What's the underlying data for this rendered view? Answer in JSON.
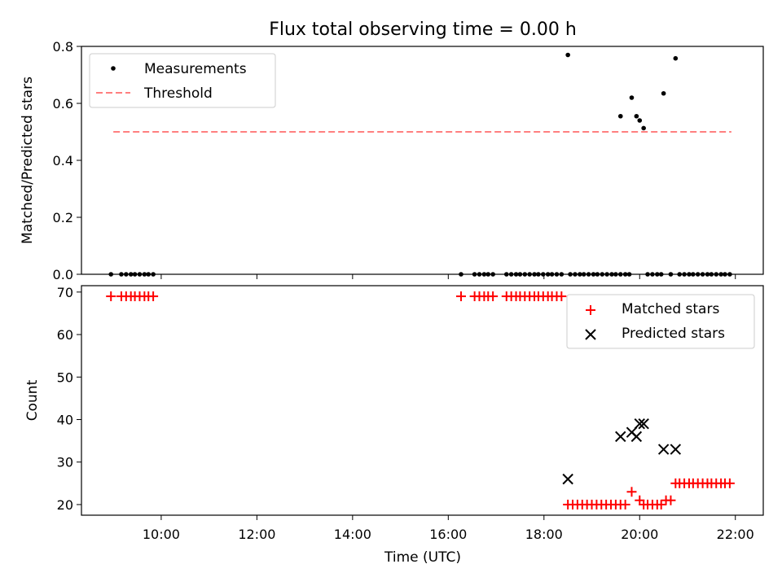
{
  "chart_data": [
    {
      "type": "scatter",
      "title": "Flux total observing time = 0.00 h",
      "xlabel": "",
      "ylabel": "Matched/Predicted stars",
      "ylim": [
        0,
        0.8
      ],
      "yticks": [
        "0.0",
        "0.2",
        "0.4",
        "0.6",
        "0.8"
      ],
      "legend_position": "upper-left",
      "series": [
        {
          "name": "Measurements",
          "color": "#000000",
          "marker": "dot",
          "points": [
            [
              "08:57",
              0
            ],
            [
              "09:10",
              0
            ],
            [
              "09:16",
              0
            ],
            [
              "09:22",
              0
            ],
            [
              "09:27",
              0
            ],
            [
              "09:33",
              0
            ],
            [
              "09:39",
              0
            ],
            [
              "09:44",
              0
            ],
            [
              "09:50",
              0
            ],
            [
              "16:16",
              0
            ],
            [
              "16:33",
              0
            ],
            [
              "16:39",
              0
            ],
            [
              "16:45",
              0
            ],
            [
              "16:50",
              0
            ],
            [
              "16:56",
              0
            ],
            [
              "17:13",
              0
            ],
            [
              "17:19",
              0
            ],
            [
              "17:25",
              0
            ],
            [
              "17:30",
              0
            ],
            [
              "17:36",
              0
            ],
            [
              "17:42",
              0
            ],
            [
              "17:48",
              0
            ],
            [
              "17:53",
              0
            ],
            [
              "17:59",
              0
            ],
            [
              "18:05",
              0
            ],
            [
              "18:10",
              0
            ],
            [
              "18:16",
              0
            ],
            [
              "18:22",
              0
            ],
            [
              "18:30",
              0.77
            ],
            [
              "18:33",
              0
            ],
            [
              "18:39",
              0
            ],
            [
              "18:45",
              0
            ],
            [
              "18:50",
              0
            ],
            [
              "18:56",
              0
            ],
            [
              "19:02",
              0
            ],
            [
              "19:07",
              0
            ],
            [
              "19:13",
              0
            ],
            [
              "19:19",
              0
            ],
            [
              "19:25",
              0
            ],
            [
              "19:30",
              0
            ],
            [
              "19:36",
              0
            ],
            [
              "19:42",
              0
            ],
            [
              "19:47",
              0
            ],
            [
              "19:36",
              0.555
            ],
            [
              "19:50",
              0.62
            ],
            [
              "19:56",
              0.555
            ],
            [
              "20:00",
              0.54
            ],
            [
              "20:05",
              0.513
            ],
            [
              "20:30",
              0.635
            ],
            [
              "20:45",
              0.758
            ],
            [
              "20:10",
              0
            ],
            [
              "20:16",
              0
            ],
            [
              "20:22",
              0
            ],
            [
              "20:27",
              0
            ],
            [
              "20:39",
              0
            ],
            [
              "20:50",
              0
            ],
            [
              "20:56",
              0
            ],
            [
              "21:02",
              0
            ],
            [
              "21:07",
              0
            ],
            [
              "21:13",
              0
            ],
            [
              "21:19",
              0
            ],
            [
              "21:25",
              0
            ],
            [
              "21:30",
              0
            ],
            [
              "21:36",
              0
            ],
            [
              "21:42",
              0
            ],
            [
              "21:47",
              0
            ],
            [
              "21:53",
              0
            ]
          ]
        },
        {
          "name": "Threshold",
          "color": "#ff7f7f",
          "marker": "dashed-line",
          "points": [
            [
              "09:00",
              0.5
            ],
            [
              "21:55",
              0.5
            ]
          ]
        }
      ]
    },
    {
      "type": "scatter",
      "title": "",
      "xlabel": "Time (UTC)",
      "ylabel": "Count",
      "xlim": [
        "08:20",
        "22:35"
      ],
      "ylim": [
        17.5,
        71.5
      ],
      "xticks": [
        "10:00",
        "12:00",
        "14:00",
        "16:00",
        "18:00",
        "20:00",
        "22:00"
      ],
      "yticks": [
        "20",
        "30",
        "40",
        "50",
        "60",
        "70"
      ],
      "legend_position": "upper-right",
      "series": [
        {
          "name": "Matched stars",
          "color": "#ff0000",
          "marker": "plus",
          "points": [
            [
              "08:57",
              69
            ],
            [
              "09:10",
              69
            ],
            [
              "09:16",
              69
            ],
            [
              "09:22",
              69
            ],
            [
              "09:27",
              69
            ],
            [
              "09:33",
              69
            ],
            [
              "09:39",
              69
            ],
            [
              "09:44",
              69
            ],
            [
              "09:50",
              69
            ],
            [
              "16:16",
              69
            ],
            [
              "16:33",
              69
            ],
            [
              "16:39",
              69
            ],
            [
              "16:45",
              69
            ],
            [
              "16:50",
              69
            ],
            [
              "16:56",
              69
            ],
            [
              "17:13",
              69
            ],
            [
              "17:19",
              69
            ],
            [
              "17:25",
              69
            ],
            [
              "17:30",
              69
            ],
            [
              "17:36",
              69
            ],
            [
              "17:42",
              69
            ],
            [
              "17:48",
              69
            ],
            [
              "17:53",
              69
            ],
            [
              "17:59",
              69
            ],
            [
              "18:05",
              69
            ],
            [
              "18:10",
              69
            ],
            [
              "18:16",
              69
            ],
            [
              "18:22",
              69
            ],
            [
              "18:30",
              20
            ],
            [
              "18:36",
              20
            ],
            [
              "18:42",
              20
            ],
            [
              "18:48",
              20
            ],
            [
              "18:54",
              20
            ],
            [
              "19:00",
              20
            ],
            [
              "19:06",
              20
            ],
            [
              "19:12",
              20
            ],
            [
              "19:18",
              20
            ],
            [
              "19:24",
              20
            ],
            [
              "19:30",
              20
            ],
            [
              "19:36",
              20
            ],
            [
              "19:42",
              20
            ],
            [
              "19:50",
              23
            ],
            [
              "20:00",
              21
            ],
            [
              "20:05",
              20
            ],
            [
              "20:10",
              20
            ],
            [
              "20:16",
              20
            ],
            [
              "20:22",
              20
            ],
            [
              "20:27",
              20
            ],
            [
              "20:33",
              21
            ],
            [
              "20:39",
              21
            ],
            [
              "20:45",
              25
            ],
            [
              "20:50",
              25
            ],
            [
              "20:56",
              25
            ],
            [
              "21:02",
              25
            ],
            [
              "21:07",
              25
            ],
            [
              "21:13",
              25
            ],
            [
              "21:19",
              25
            ],
            [
              "21:25",
              25
            ],
            [
              "21:30",
              25
            ],
            [
              "21:36",
              25
            ],
            [
              "21:42",
              25
            ],
            [
              "21:47",
              25
            ],
            [
              "21:53",
              25
            ]
          ]
        },
        {
          "name": "Predicted stars",
          "color": "#000000",
          "marker": "x",
          "points": [
            [
              "18:30",
              26
            ],
            [
              "19:36",
              36
            ],
            [
              "19:50",
              37
            ],
            [
              "19:56",
              36
            ],
            [
              "20:00",
              39
            ],
            [
              "20:05",
              39
            ],
            [
              "20:30",
              33
            ],
            [
              "20:45",
              33
            ]
          ]
        }
      ]
    }
  ]
}
